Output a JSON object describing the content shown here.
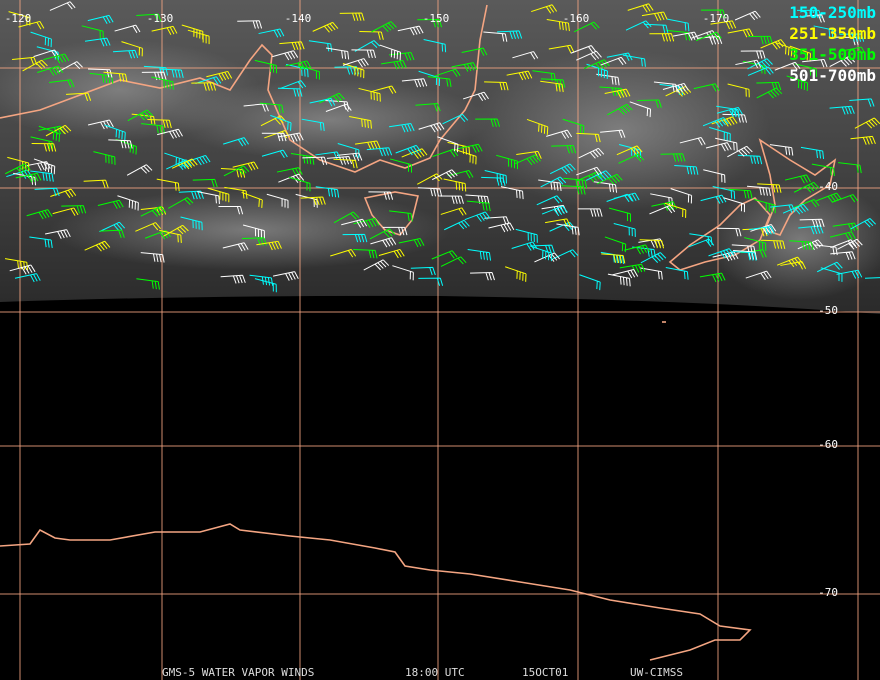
{
  "map": {
    "longitude_labels": [
      "-120",
      "-130",
      "-140",
      "-150",
      "-160",
      "-170"
    ],
    "latitude_labels": [
      "-40",
      "-50",
      "-60",
      "-70"
    ],
    "legend": [
      {
        "label": "150-250mb",
        "color": "#00ffff"
      },
      {
        "label": "251-350mb",
        "color": "#ffff00"
      },
      {
        "label": "351-500mb",
        "color": "#00ff00"
      },
      {
        "label": "501-700mb",
        "color": "#ffffff"
      }
    ],
    "footer": [
      "GMS-5 WATER VAPOR WINDS",
      "18:00 UTC",
      "15OCT01",
      "UW-CIMSS"
    ]
  }
}
